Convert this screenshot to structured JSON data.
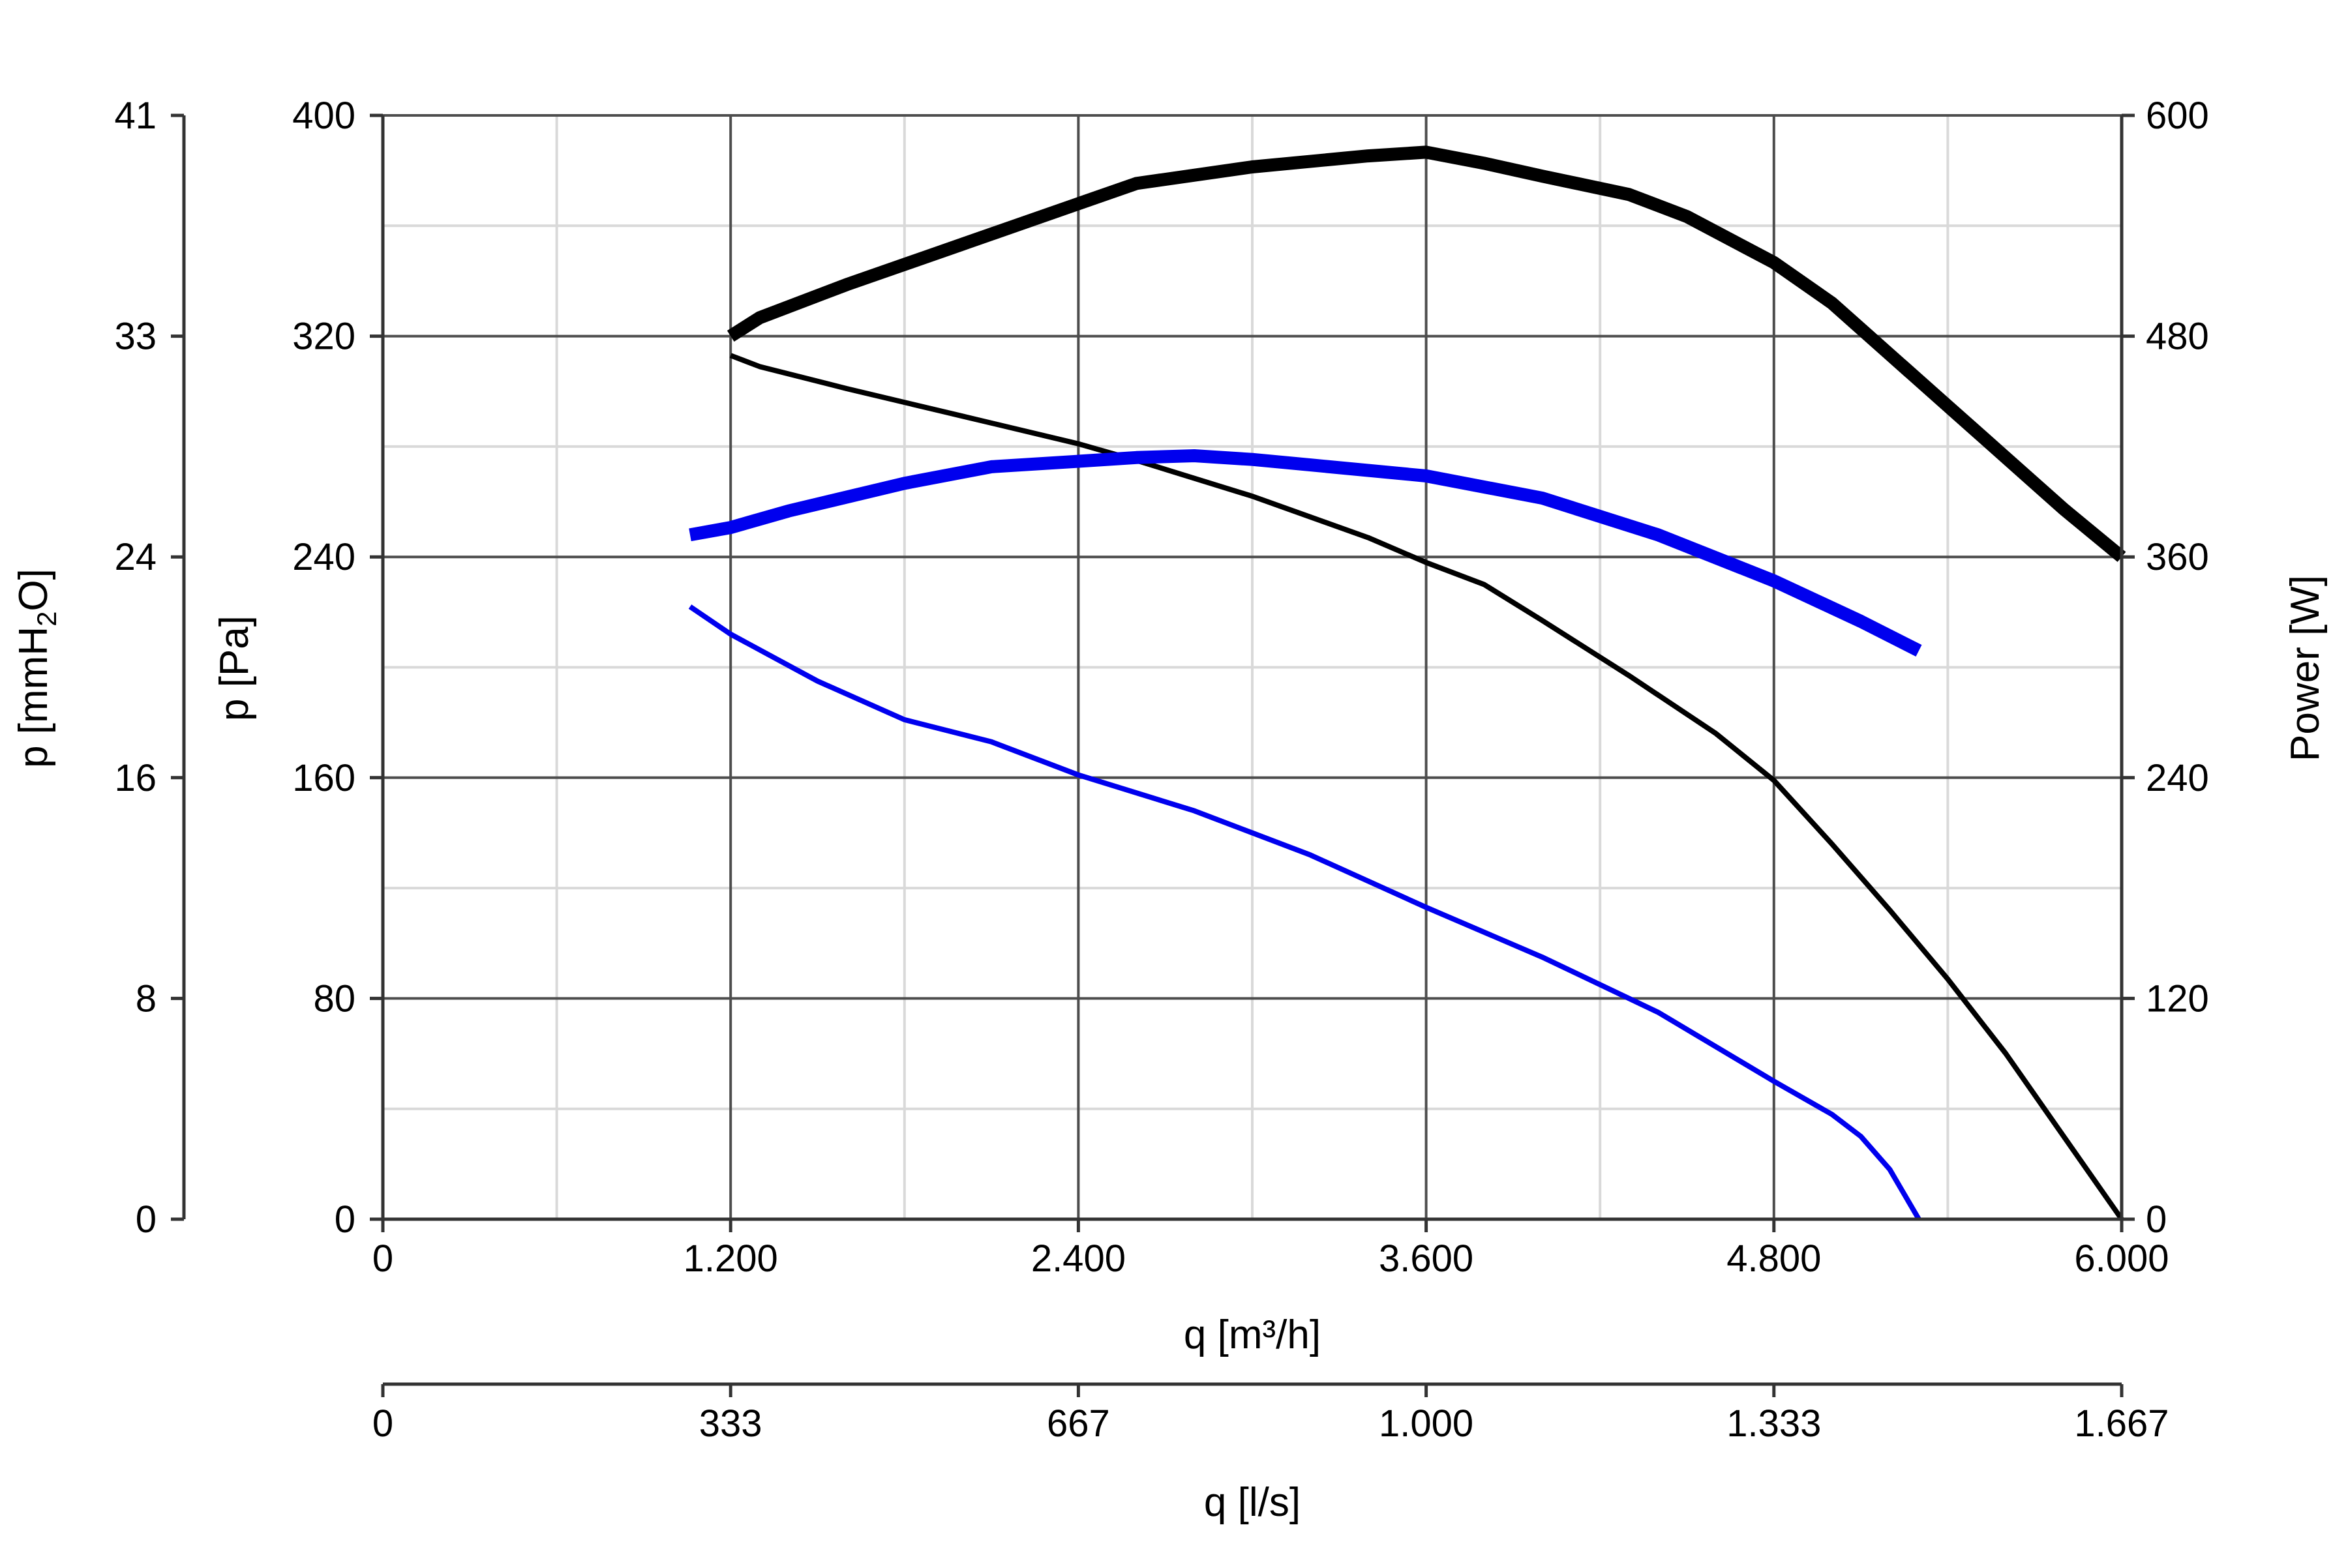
{
  "chart_data": {
    "type": "line",
    "x_axis_primary": {
      "label": "q [m³/h]",
      "range": [
        0,
        6000
      ],
      "ticks": [
        0,
        1200,
        2400,
        3600,
        4800,
        6000
      ],
      "tick_labels": [
        "0",
        "1.200",
        "2.400",
        "3.600",
        "4.800",
        "6.000"
      ]
    },
    "x_axis_secondary": {
      "label": "q [l/s]",
      "range": [
        0,
        1667
      ],
      "ticks": [
        0,
        333,
        667,
        1000,
        1333,
        1667
      ],
      "tick_labels": [
        "0",
        "333",
        "667",
        "1.000",
        "1.333",
        "1.667"
      ]
    },
    "y_axis_primary": {
      "label": "p [Pa]",
      "range": [
        0,
        400
      ],
      "ticks": [
        0,
        80,
        160,
        240,
        320,
        400
      ],
      "tick_labels": [
        "0",
        "80",
        "160",
        "240",
        "320",
        "400"
      ]
    },
    "y_axis_secondary_left": {
      "label_prefix": "p [mmH",
      "label_sub": "2",
      "label_suffix": "O]",
      "range": [
        0,
        41
      ],
      "tick_labels": [
        "0",
        "8",
        "16",
        "24",
        "33",
        "41"
      ]
    },
    "y_axis_right": {
      "label": "Power [W]",
      "range": [
        0,
        600
      ],
      "ticks": [
        0,
        120,
        240,
        360,
        480,
        600
      ],
      "tick_labels": [
        "0",
        "120",
        "240",
        "360",
        "480",
        "600"
      ]
    },
    "grid": true,
    "series": [
      {
        "axis": "pressure",
        "color": "#000000",
        "style": "thin",
        "points": [
          [
            1200,
            313
          ],
          [
            1300,
            309
          ],
          [
            1600,
            301
          ],
          [
            2000,
            291
          ],
          [
            2400,
            281
          ],
          [
            2600,
            275
          ],
          [
            3000,
            262
          ],
          [
            3400,
            247
          ],
          [
            3600,
            238
          ],
          [
            3800,
            230
          ],
          [
            4000,
            217
          ],
          [
            4300,
            197
          ],
          [
            4600,
            176
          ],
          [
            4800,
            159
          ],
          [
            5000,
            136
          ],
          [
            5200,
            112
          ],
          [
            5400,
            87
          ],
          [
            5600,
            60
          ],
          [
            5800,
            30
          ],
          [
            6000,
            0
          ]
        ]
      },
      {
        "axis": "pressure",
        "color": "#0000ee",
        "style": "thin",
        "points": [
          [
            1060,
            222
          ],
          [
            1200,
            212
          ],
          [
            1500,
            195
          ],
          [
            1800,
            181
          ],
          [
            2100,
            173
          ],
          [
            2400,
            161
          ],
          [
            2800,
            148
          ],
          [
            3200,
            132
          ],
          [
            3600,
            113
          ],
          [
            4000,
            95
          ],
          [
            4400,
            75
          ],
          [
            4800,
            50
          ],
          [
            5000,
            38
          ],
          [
            5100,
            30
          ],
          [
            5200,
            18
          ],
          [
            5300,
            0
          ]
        ]
      },
      {
        "axis": "power",
        "color": "#000000",
        "style": "thick",
        "points": [
          [
            1200,
            480
          ],
          [
            1300,
            490
          ],
          [
            1600,
            508
          ],
          [
            2000,
            530
          ],
          [
            2400,
            552
          ],
          [
            2600,
            563
          ],
          [
            3000,
            572
          ],
          [
            3400,
            578
          ],
          [
            3600,
            580
          ],
          [
            3800,
            574
          ],
          [
            4000,
            567
          ],
          [
            4300,
            557
          ],
          [
            4500,
            545
          ],
          [
            4800,
            520
          ],
          [
            5000,
            498
          ],
          [
            5200,
            470
          ],
          [
            5400,
            442
          ],
          [
            5600,
            414
          ],
          [
            5800,
            386
          ],
          [
            6000,
            360
          ]
        ]
      },
      {
        "axis": "power",
        "color": "#0000ee",
        "style": "thick",
        "points": [
          [
            1060,
            372
          ],
          [
            1200,
            376
          ],
          [
            1400,
            385
          ],
          [
            1800,
            400
          ],
          [
            2100,
            409
          ],
          [
            2400,
            412
          ],
          [
            2600,
            414
          ],
          [
            2800,
            415
          ],
          [
            3000,
            413
          ],
          [
            3200,
            410
          ],
          [
            3600,
            404
          ],
          [
            4000,
            392
          ],
          [
            4400,
            372
          ],
          [
            4800,
            347
          ],
          [
            5100,
            325
          ],
          [
            5300,
            309
          ]
        ]
      }
    ]
  }
}
